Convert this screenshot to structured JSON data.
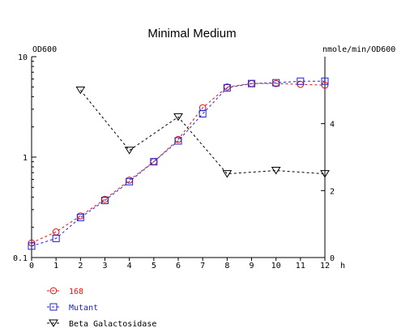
{
  "chart_data": {
    "type": "line",
    "title": "Minimal Medium",
    "left_axis_label": "OD600",
    "right_axis_label": "nmole/min/OD600",
    "x_unit_label": "h",
    "xlim": [
      0,
      12
    ],
    "x_ticks": [
      "0",
      "1",
      "2",
      "3",
      "4",
      "5",
      "6",
      "7",
      "8",
      "9",
      "10",
      "11",
      "12"
    ],
    "y_left": {
      "scale": "log",
      "lim": [
        0.1,
        10
      ],
      "ticks": [
        "0.1",
        "1",
        "10"
      ]
    },
    "y_right": {
      "scale": "linear",
      "lim": [
        0,
        6
      ],
      "ticks": [
        "0",
        "2",
        "4"
      ]
    },
    "grid": false,
    "legend_position": "bottom-left",
    "series": [
      {
        "name": "168",
        "axis": "left",
        "marker": "circle",
        "color": "#e01010",
        "x": [
          0,
          1,
          2,
          3,
          4,
          5,
          6,
          7,
          8,
          9,
          10,
          11,
          12
        ],
        "y": [
          0.14,
          0.18,
          0.26,
          0.38,
          0.59,
          0.9,
          1.5,
          3.1,
          5.0,
          5.4,
          5.4,
          5.3,
          5.2
        ]
      },
      {
        "name": "Mutant",
        "axis": "left",
        "marker": "square",
        "color": "#2020d0",
        "x": [
          0,
          1,
          2,
          3,
          4,
          5,
          6,
          7,
          8,
          9,
          10,
          11,
          12
        ],
        "y": [
          0.13,
          0.155,
          0.25,
          0.37,
          0.57,
          0.9,
          1.45,
          2.7,
          4.9,
          5.4,
          5.5,
          5.7,
          5.7
        ]
      },
      {
        "name": "Beta Galactosidase",
        "axis": "right",
        "marker": "triangle-down",
        "color": "#000000",
        "x": [
          2,
          4,
          6,
          8,
          10,
          12
        ],
        "y": [
          5.0,
          3.2,
          4.2,
          2.5,
          2.6,
          2.5
        ]
      }
    ]
  }
}
